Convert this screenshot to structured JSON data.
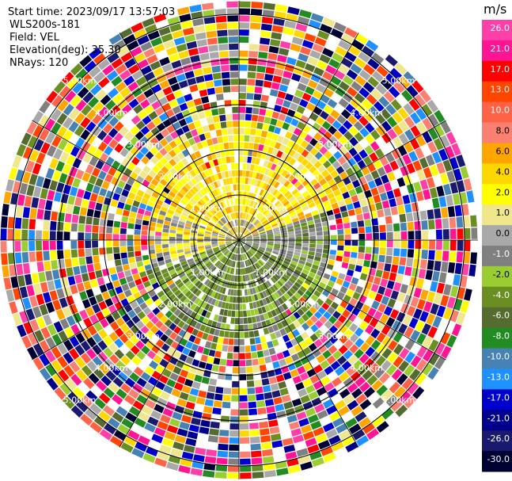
{
  "header": {
    "start_time": "Start time: 2023/09/17 13:57:03",
    "instrument": "WLS200s-181",
    "field": "Field: VEL",
    "elevation": "Elevation(deg): 35.30",
    "nrays": "NRays: 120"
  },
  "chart_data": {
    "type": "heatmap",
    "subtype": "radar-ppi",
    "field": "VEL",
    "units": "m/s",
    "n_rays": 120,
    "elevation_deg": 35.3,
    "range_rings": [
      {
        "label": "1.00km",
        "km": 1
      },
      {
        "label": "2.00km",
        "km": 2
      },
      {
        "label": "3.00km",
        "km": 3
      },
      {
        "label": "4.00km",
        "km": 4
      },
      {
        "label": "5.00km",
        "km": 5
      }
    ],
    "colorbar": {
      "unit": "m/s",
      "ticks": [
        "26.0",
        "21.0",
        "17.0",
        "13.0",
        "10.0",
        "8.0",
        "6.0",
        "4.0",
        "2.0",
        "1.0",
        "0.0",
        "-1.0",
        "-2.0",
        "-4.0",
        "-6.0",
        "-8.0",
        "-10.0",
        "-13.0",
        "-17.0",
        "-21.0",
        "-26.0",
        "-30.0"
      ],
      "colors": [
        "#ff3fa8",
        "#ff1493",
        "#ff0000",
        "#ff4500",
        "#ff6347",
        "#fa8072",
        "#ffa500",
        "#ffd700",
        "#ffff00",
        "#f0e68c",
        "#a9a9a9",
        "#808080",
        "#9acd32",
        "#6b8e23",
        "#556b2f",
        "#228b22",
        "#4682b4",
        "#1e90ff",
        "#0000cd",
        "#00008b",
        "#191970",
        "#000033"
      ]
    },
    "inner_pattern": {
      "north_half": "positive (yellow/orange, ~2-6 m/s)",
      "south_half": "negative (olive/green, ~-2 to -6 m/s)",
      "edge": "noise (random colors) beyond ~2 km"
    }
  }
}
